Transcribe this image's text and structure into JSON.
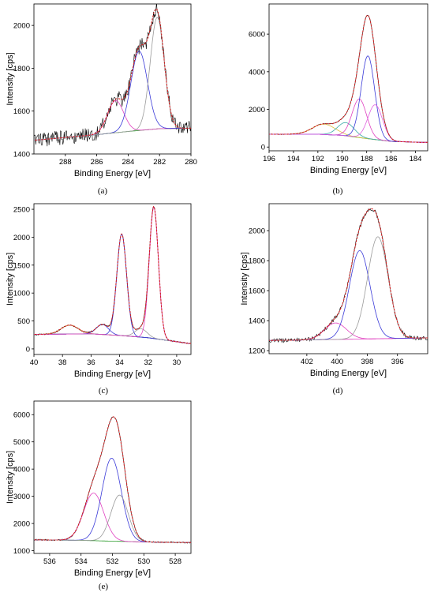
{
  "figure": {
    "panels": [
      "(a)",
      "(b)",
      "(c)",
      "(d)",
      "(e)"
    ]
  },
  "chart_data": [
    {
      "type": "line",
      "panel": "a",
      "title": "",
      "xlabel": "Binding Energy [eV]",
      "ylabel": "Intensity [cps]",
      "xlim": [
        290,
        280
      ],
      "ylim": [
        1400,
        2100
      ],
      "x_reversed": true,
      "xticks": [
        288,
        286,
        284,
        282,
        280
      ],
      "yticks": [
        1400,
        1600,
        1800,
        2000
      ],
      "baseline": [
        [
          289.8,
          1465
        ],
        [
          286,
          1490
        ],
        [
          284,
          1505
        ],
        [
          282,
          1518
        ],
        [
          280.2,
          1520
        ]
      ],
      "peaks": [
        {
          "center": 284.8,
          "height": 150,
          "fwhm": 1.2,
          "color": "#e040c0"
        },
        {
          "center": 283.3,
          "height": 370,
          "fwhm": 1.25,
          "color": "#3a3ad8"
        },
        {
          "center": 282.15,
          "height": 520,
          "fwhm": 1.05,
          "color": "#9a9a9a"
        }
      ],
      "noise": 35,
      "colors": {
        "raw": "#000000",
        "envelope": "#d42020",
        "baseline": "#2a9a2a"
      }
    },
    {
      "type": "line",
      "panel": "b",
      "title": "",
      "xlabel": "Binding Energy [eV]",
      "ylabel": "",
      "xlim": [
        196,
        183
      ],
      "ylim": [
        -200,
        7600
      ],
      "x_reversed": true,
      "xticks": [
        196,
        194,
        192,
        190,
        188,
        186,
        184
      ],
      "yticks": [
        0,
        2000,
        4000,
        6000
      ],
      "baseline": [
        [
          195.6,
          680
        ],
        [
          192,
          680
        ],
        [
          190,
          620
        ],
        [
          188,
          450
        ],
        [
          186,
          300
        ],
        [
          183.6,
          250
        ]
      ],
      "peaks": [
        {
          "center": 191.5,
          "height": 550,
          "fwhm": 2.2,
          "color": "#d8c040"
        },
        {
          "center": 189.7,
          "height": 700,
          "fwhm": 1.6,
          "color": "#3aa8a8"
        },
        {
          "center": 188.6,
          "height": 2050,
          "fwhm": 1.4,
          "color": "#e040c0"
        },
        {
          "center": 187.9,
          "height": 4400,
          "fwhm": 1.3,
          "color": "#3a3ad8"
        },
        {
          "center": 187.3,
          "height": 1850,
          "fwhm": 1.4,
          "color": "#e060e0"
        }
      ],
      "noise": 20,
      "colors": {
        "raw": "#000000",
        "envelope": "#d42020",
        "baseline": "#2a9a2a"
      }
    },
    {
      "type": "line",
      "panel": "c",
      "title": "",
      "xlabel": "Binding Energy [eV]",
      "ylabel": "Intensity [cps]",
      "xlim": [
        40,
        29
      ],
      "ylim": [
        -100,
        2600
      ],
      "x_reversed": true,
      "xticks": [
        40,
        38,
        36,
        34,
        32,
        30
      ],
      "yticks": [
        0,
        500,
        1000,
        1500,
        2000,
        2500
      ],
      "baseline": [
        [
          39.8,
          260
        ],
        [
          36,
          270
        ],
        [
          34,
          240
        ],
        [
          32,
          200
        ],
        [
          29.2,
          100
        ]
      ],
      "peaks": [
        {
          "center": 37.5,
          "height": 160,
          "fwhm": 1.4,
          "color": "#d8a040"
        },
        {
          "center": 35.2,
          "height": 180,
          "fwhm": 1.0,
          "color": "#3a3ad8"
        },
        {
          "center": 33.85,
          "height": 1820,
          "fwhm": 0.8,
          "color": "#3a3ad8"
        },
        {
          "center": 32.5,
          "height": 150,
          "fwhm": 1.0,
          "color": "#9a9a9a"
        },
        {
          "center": 31.6,
          "height": 2350,
          "fwhm": 0.75,
          "color": "#e040c0"
        }
      ],
      "noise": 12,
      "colors": {
        "raw": "#000000",
        "envelope": "#d42020",
        "baseline": "#2a9a2a"
      }
    },
    {
      "type": "line",
      "panel": "d",
      "title": "",
      "xlabel": "Binding Energy [eV]",
      "ylabel": "Intensity [cps]",
      "xlim": [
        404.5,
        394
      ],
      "ylim": [
        1180,
        2180
      ],
      "x_reversed": true,
      "xticks": [
        402,
        400,
        398,
        396
      ],
      "yticks": [
        1200,
        1400,
        1600,
        1800,
        2000
      ],
      "baseline": [
        [
          404.4,
          1268
        ],
        [
          400,
          1275
        ],
        [
          398,
          1278
        ],
        [
          396,
          1282
        ],
        [
          394.1,
          1285
        ]
      ],
      "peaks": [
        {
          "center": 400.1,
          "height": 110,
          "fwhm": 1.7,
          "color": "#e040c0"
        },
        {
          "center": 398.5,
          "height": 590,
          "fwhm": 1.6,
          "color": "#3a3ad8"
        },
        {
          "center": 397.3,
          "height": 680,
          "fwhm": 1.6,
          "color": "#9a9a9a"
        }
      ],
      "noise": 14,
      "colors": {
        "raw": "#000000",
        "envelope": "#d42020",
        "baseline": "#e040c0"
      }
    },
    {
      "type": "line",
      "panel": "e",
      "title": "",
      "xlabel": "Binding Energy [eV]",
      "ylabel": "Intensity [cps]",
      "xlim": [
        537,
        527
      ],
      "ylim": [
        900,
        6500
      ],
      "x_reversed": true,
      "xticks": [
        536,
        534,
        532,
        530,
        528
      ],
      "yticks": [
        1000,
        2000,
        3000,
        4000,
        5000,
        6000
      ],
      "baseline": [
        [
          536.8,
          1400
        ],
        [
          534,
          1380
        ],
        [
          532,
          1350
        ],
        [
          530,
          1320
        ],
        [
          527.2,
          1300
        ]
      ],
      "peaks": [
        {
          "center": 533.2,
          "height": 1750,
          "fwhm": 1.5,
          "color": "#e040c0"
        },
        {
          "center": 532.05,
          "height": 3050,
          "fwhm": 1.45,
          "color": "#3a3ad8"
        },
        {
          "center": 531.55,
          "height": 1700,
          "fwhm": 1.3,
          "color": "#9a9a9a"
        }
      ],
      "noise": 25,
      "colors": {
        "raw": "#000000",
        "envelope": "#d42020",
        "baseline": "#2a9a2a"
      }
    }
  ]
}
